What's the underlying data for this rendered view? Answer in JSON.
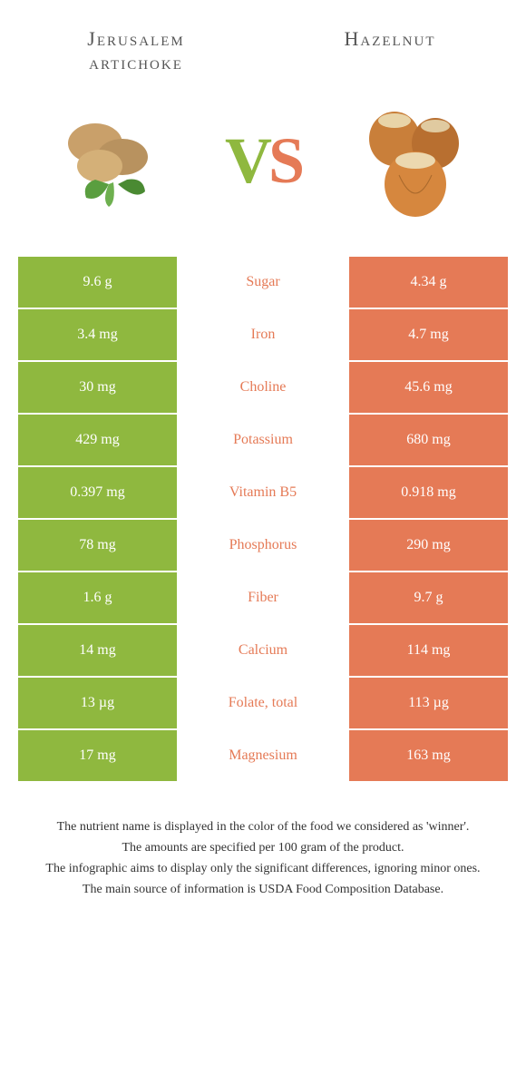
{
  "header": {
    "left_title": "Jerusalem artichoke",
    "right_title": "Hazelnut",
    "vs_v": "V",
    "vs_s": "S"
  },
  "colors": {
    "green": "#8fb83f",
    "orange": "#e57a56",
    "text": "#333333",
    "white": "#ffffff"
  },
  "comparison": {
    "type": "table",
    "columns": [
      "left_value",
      "nutrient",
      "right_value",
      "winner_color"
    ],
    "rows": [
      {
        "left": "9.6 g",
        "nutrient": "Sugar",
        "right": "4.34 g",
        "winner": "orange"
      },
      {
        "left": "3.4 mg",
        "nutrient": "Iron",
        "right": "4.7 mg",
        "winner": "orange"
      },
      {
        "left": "30 mg",
        "nutrient": "Choline",
        "right": "45.6 mg",
        "winner": "orange"
      },
      {
        "left": "429 mg",
        "nutrient": "Potassium",
        "right": "680 mg",
        "winner": "orange"
      },
      {
        "left": "0.397 mg",
        "nutrient": "Vitamin B5",
        "right": "0.918 mg",
        "winner": "orange"
      },
      {
        "left": "78 mg",
        "nutrient": "Phosphorus",
        "right": "290 mg",
        "winner": "orange"
      },
      {
        "left": "1.6 g",
        "nutrient": "Fiber",
        "right": "9.7 g",
        "winner": "orange"
      },
      {
        "left": "14 mg",
        "nutrient": "Calcium",
        "right": "114 mg",
        "winner": "orange"
      },
      {
        "left": "13 µg",
        "nutrient": "Folate, total",
        "right": "113 µg",
        "winner": "orange"
      },
      {
        "left": "17 mg",
        "nutrient": "Magnesium",
        "right": "163 mg",
        "winner": "orange"
      }
    ]
  },
  "footer": {
    "line1": "The nutrient name is displayed in the color of the food we considered as 'winner'.",
    "line2": "The amounts are specified per 100 gram of the product.",
    "line3": "The infographic aims to display only the significant differences, ignoring minor ones.",
    "line4": "The main source of information is USDA Food Composition Database."
  }
}
